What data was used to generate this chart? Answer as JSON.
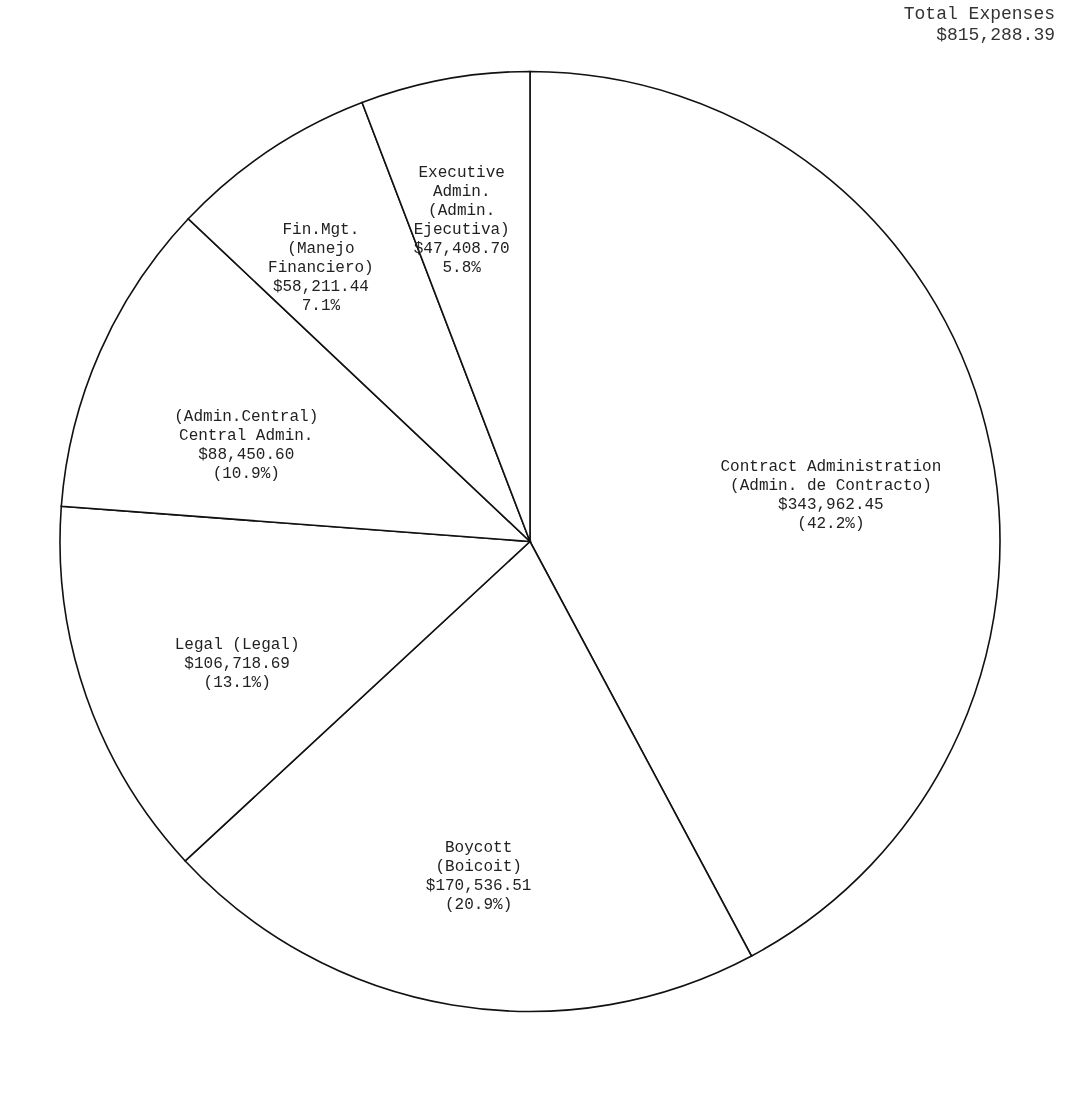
{
  "chart_data": {
    "type": "pie",
    "title": "Total Expenses",
    "subtitle": "$815,288.39",
    "categories": [
      "Contract Administration\n(Admin. de Contracto)",
      "Boycott\n(Boicoit)",
      "Legal (Legal)",
      "(Admin.Central)\nCentral Admin.",
      "Fin.Mgt.\n(Manejo\nFinanciero)",
      "Executive\nAdmin.\n(Admin.\nEjecutiva)"
    ],
    "values": [
      343962.45,
      170536.51,
      106718.69,
      88450.6,
      58211.44,
      47408.7
    ],
    "value_labels": [
      "$343,962.45\n(42.2%)",
      "$170,536.51\n(20.9%)",
      "$106,718.69\n(13.1%)",
      "$88,450.60\n(10.9%)",
      "$58,211.44\n7.1%",
      "$47,408.70\n5.8%"
    ],
    "colors": [
      "#ffffff",
      "#ffffff",
      "#ffffff",
      "#ffffff",
      "#ffffff",
      "#ffffff"
    ],
    "legend": false
  }
}
